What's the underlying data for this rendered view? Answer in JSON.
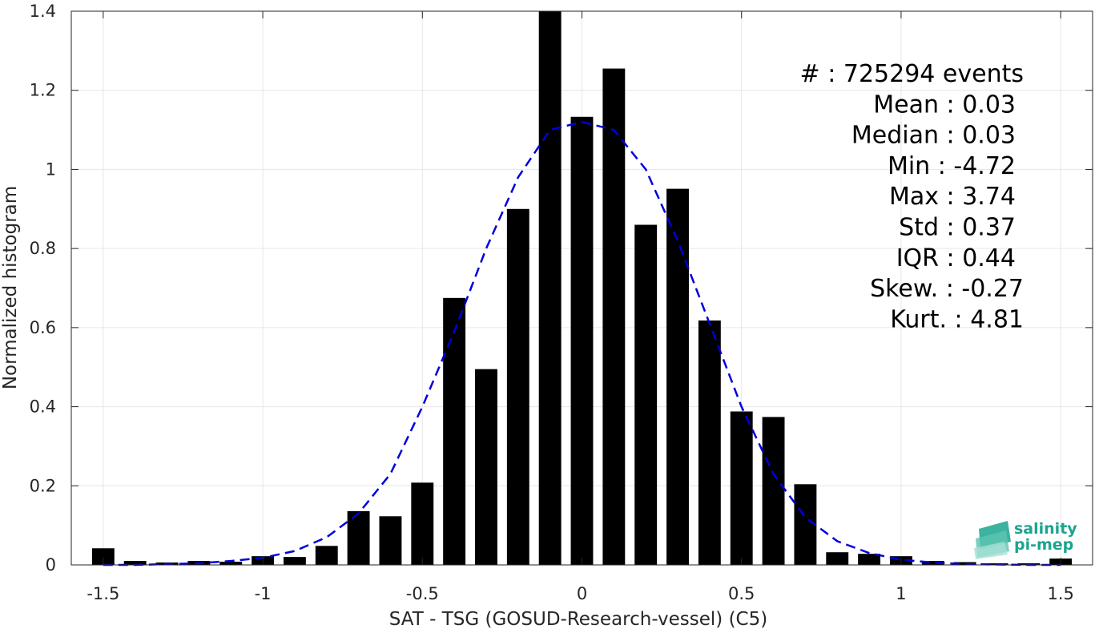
{
  "chart_data": {
    "type": "bar",
    "title": "",
    "xlabel": "SAT - TSG (GOSUD-Research-vessel) (C5)",
    "ylabel": "Normalized histogram",
    "xlim": [
      -1.6,
      1.6
    ],
    "ylim": [
      0,
      1.4
    ],
    "xticks": [
      -1.5,
      -1,
      -0.5,
      0,
      0.5,
      1,
      1.5
    ],
    "xtick_labels": [
      "-1.5",
      "-1",
      "-0.5",
      "0",
      "0.5",
      "1",
      "1.5"
    ],
    "yticks": [
      0,
      0.2,
      0.4,
      0.6,
      0.8,
      1,
      1.2,
      1.4
    ],
    "ytick_labels": [
      "0",
      "0.2",
      "0.4",
      "0.6",
      "0.8",
      "1",
      "1.2",
      "1.4"
    ],
    "grid": true,
    "bar_width": 0.07,
    "x": [
      -1.5,
      -1.4,
      -1.3,
      -1.2,
      -1.1,
      -1.0,
      -0.9,
      -0.8,
      -0.7,
      -0.6,
      -0.5,
      -0.4,
      -0.3,
      -0.2,
      -0.1,
      0.0,
      0.1,
      0.2,
      0.3,
      0.4,
      0.5,
      0.6,
      0.7,
      0.8,
      0.9,
      1.0,
      1.1,
      1.2,
      1.3,
      1.4,
      1.5
    ],
    "values": [
      0.042,
      0.01,
      0.006,
      0.01,
      0.008,
      0.022,
      0.02,
      0.048,
      0.136,
      0.123,
      0.208,
      0.675,
      0.495,
      0.9,
      1.4,
      1.133,
      1.255,
      0.86,
      0.951,
      0.618,
      0.388,
      0.374,
      0.204,
      0.032,
      0.028,
      0.022,
      0.01,
      0.007,
      0.004,
      0.004,
      0.016
    ],
    "bar_color": "#000000",
    "fit_curve": {
      "style": "dashed",
      "color": "#0000dd",
      "x": [
        -1.5,
        -1.4,
        -1.3,
        -1.2,
        -1.1,
        -1.0,
        -0.9,
        -0.8,
        -0.7,
        -0.6,
        -0.5,
        -0.4,
        -0.3,
        -0.2,
        -0.1,
        0.0,
        0.1,
        0.2,
        0.3,
        0.4,
        0.5,
        0.6,
        0.7,
        0.8,
        0.9,
        1.0,
        1.1,
        1.2,
        1.3,
        1.4,
        1.5
      ],
      "values": [
        0.0,
        0.0,
        0.002,
        0.004,
        0.01,
        0.018,
        0.035,
        0.07,
        0.13,
        0.23,
        0.4,
        0.59,
        0.8,
        0.98,
        1.1,
        1.12,
        1.1,
        1.0,
        0.82,
        0.61,
        0.4,
        0.23,
        0.12,
        0.06,
        0.03,
        0.013,
        0.006,
        0.002,
        0.001,
        0.0,
        0.0
      ]
    },
    "stats_lines": [
      "#  : 725294 events",
      "Mean : 0.03",
      "Median : 0.03",
      "Min : -4.72",
      "Max : 3.74",
      "Std : 0.37",
      "IQR : 0.44",
      "Skew. : -0.27",
      "Kurt. : 4.81"
    ],
    "logo": {
      "line1": "salinity",
      "line2": "pi-mep",
      "color": "#1aa58f"
    }
  }
}
